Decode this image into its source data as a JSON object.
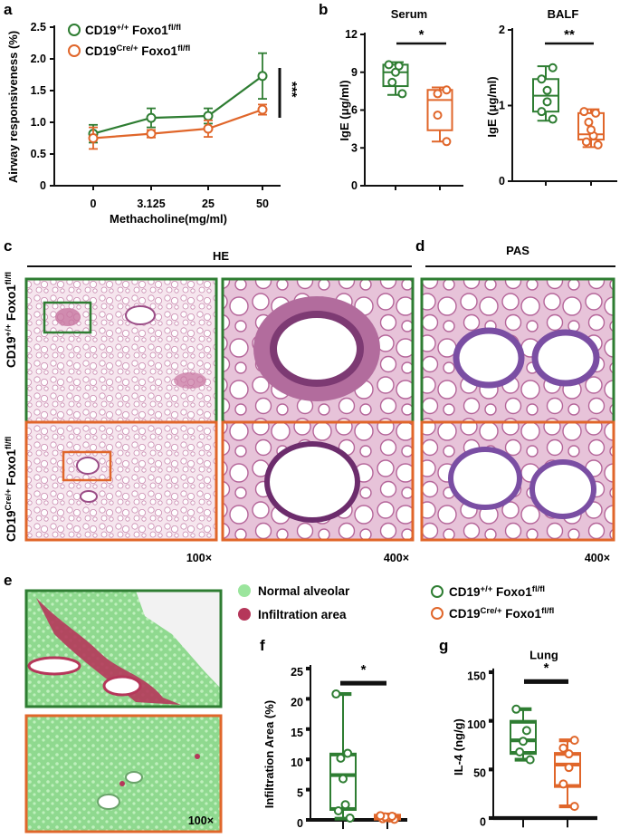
{
  "colors": {
    "green": "#2e7d32",
    "orange": "#e0662a",
    "normal_alveolar": "#9be59d",
    "infiltration": "#b5375a"
  },
  "panels": {
    "a": "a",
    "b": "b",
    "c": "c",
    "d": "d",
    "e": "e",
    "f": "f",
    "g": "g"
  },
  "groups": {
    "wt": {
      "base": "CD19",
      "sup": "+/+",
      "gene": " Foxo1",
      "gsup": "fl/fl"
    },
    "cre": {
      "base": "CD19",
      "sup": "Cre/+",
      "gene": " Foxo1",
      "gsup": "fl/fl"
    }
  },
  "histology": {
    "he_title": "HE",
    "pas_title": "PAS",
    "mag_100": "100×",
    "mag_400": "400×",
    "seg_legend": [
      "Normal alveolar",
      "Infiltration area"
    ],
    "e_mag": "100×"
  },
  "chart_data": [
    {
      "panel": "a",
      "type": "line",
      "xlabel": "Methacholine(mg/ml)",
      "ylabel": "Airway responsiveness (%)",
      "categories": [
        "0",
        "3.125",
        "25",
        "50"
      ],
      "ylim": [
        0,
        2.5
      ],
      "yticks": [
        "0",
        "0.5",
        "1.0",
        "1.5",
        "2.0",
        "2.5"
      ],
      "series": [
        {
          "name": "CD19+/+ Foxo1fl/fl",
          "color": "#2e7d32",
          "values": [
            0.82,
            1.07,
            1.1,
            1.73
          ],
          "err": [
            0.14,
            0.15,
            0.12,
            0.36
          ]
        },
        {
          "name": "CD19Cre/+ Foxo1fl/fl",
          "color": "#e0662a",
          "values": [
            0.75,
            0.82,
            0.9,
            1.2
          ],
          "err": [
            0.17,
            0.06,
            0.13,
            0.08
          ]
        }
      ],
      "significance": "***"
    },
    {
      "panel": "b-serum",
      "type": "box",
      "title": "Serum",
      "ylabel": "IgE (μg/ml)",
      "ylim": [
        0,
        12
      ],
      "yticks": [
        "0",
        "3",
        "6",
        "9",
        "12"
      ],
      "boxes": [
        {
          "group": "CD19+/+ Foxo1fl/fl",
          "color": "#2e7d32",
          "min": 7.2,
          "q1": 7.9,
          "median": 9.0,
          "q3": 9.6,
          "max": 9.8,
          "points": [
            7.3,
            8.2,
            9.0,
            9.5,
            9.6
          ]
        },
        {
          "group": "CD19Cre/+ Foxo1fl/fl",
          "color": "#e0662a",
          "min": 3.5,
          "q1": 4.4,
          "median": 6.8,
          "q3": 7.6,
          "max": 7.8,
          "points": [
            3.5,
            5.6,
            7.3,
            7.6
          ]
        }
      ],
      "significance": "*"
    },
    {
      "panel": "b-balf",
      "type": "box",
      "title": "BALF",
      "ylabel": "IgE (μg/ml)",
      "ylim": [
        0,
        2
      ],
      "yticks": [
        "0",
        "1",
        "2"
      ],
      "boxes": [
        {
          "group": "CD19+/+ Foxo1fl/fl",
          "color": "#2e7d32",
          "min": 0.8,
          "q1": 0.92,
          "median": 1.13,
          "q3": 1.35,
          "max": 1.52,
          "points": [
            0.82,
            0.92,
            1.05,
            1.2,
            1.35,
            1.5
          ]
        },
        {
          "group": "CD19Cre/+ Foxo1fl/fl",
          "color": "#e0662a",
          "min": 0.45,
          "q1": 0.55,
          "median": 0.62,
          "q3": 0.9,
          "max": 0.95,
          "points": [
            0.48,
            0.52,
            0.6,
            0.68,
            0.78,
            0.9,
            0.92
          ]
        }
      ],
      "significance": "**"
    },
    {
      "panel": "f",
      "type": "box",
      "ylabel": "Infiltration Area (%)",
      "ylim": [
        0,
        25
      ],
      "yticks": [
        "0",
        "5",
        "10",
        "15",
        "20",
        "25"
      ],
      "boxes": [
        {
          "group": "CD19+/+ Foxo1fl/fl",
          "color": "#2e7d32",
          "min": 0.2,
          "q1": 1.8,
          "median": 7.4,
          "q3": 10.8,
          "max": 20.8,
          "points": [
            0.3,
            1.5,
            2.5,
            6.8,
            10.2,
            11.0,
            20.8
          ]
        },
        {
          "group": "CD19Cre/+ Foxo1fl/fl",
          "color": "#e0662a",
          "min": 0.0,
          "q1": 0.2,
          "median": 0.4,
          "q3": 0.7,
          "max": 0.9,
          "points": [
            0.1,
            0.2,
            0.3,
            0.4,
            0.5,
            0.6,
            0.7
          ]
        }
      ],
      "significance": "*"
    },
    {
      "panel": "g",
      "type": "box",
      "title": "Lung",
      "ylabel": "IL-4 (ng/g)",
      "ylim": [
        0,
        150
      ],
      "yticks": [
        "0",
        "50",
        "100",
        "150"
      ],
      "boxes": [
        {
          "group": "CD19+/+ Foxo1fl/fl",
          "color": "#2e7d32",
          "min": 60,
          "q1": 67,
          "median": 80,
          "q3": 99,
          "max": 112,
          "points": [
            60,
            68,
            79,
            90,
            112
          ]
        },
        {
          "group": "CD19Cre/+ Foxo1fl/fl",
          "color": "#e0662a",
          "min": 12,
          "q1": 33,
          "median": 55,
          "q3": 66,
          "max": 80,
          "points": [
            12,
            35,
            52,
            66,
            72,
            80
          ]
        }
      ],
      "significance": "*"
    }
  ]
}
